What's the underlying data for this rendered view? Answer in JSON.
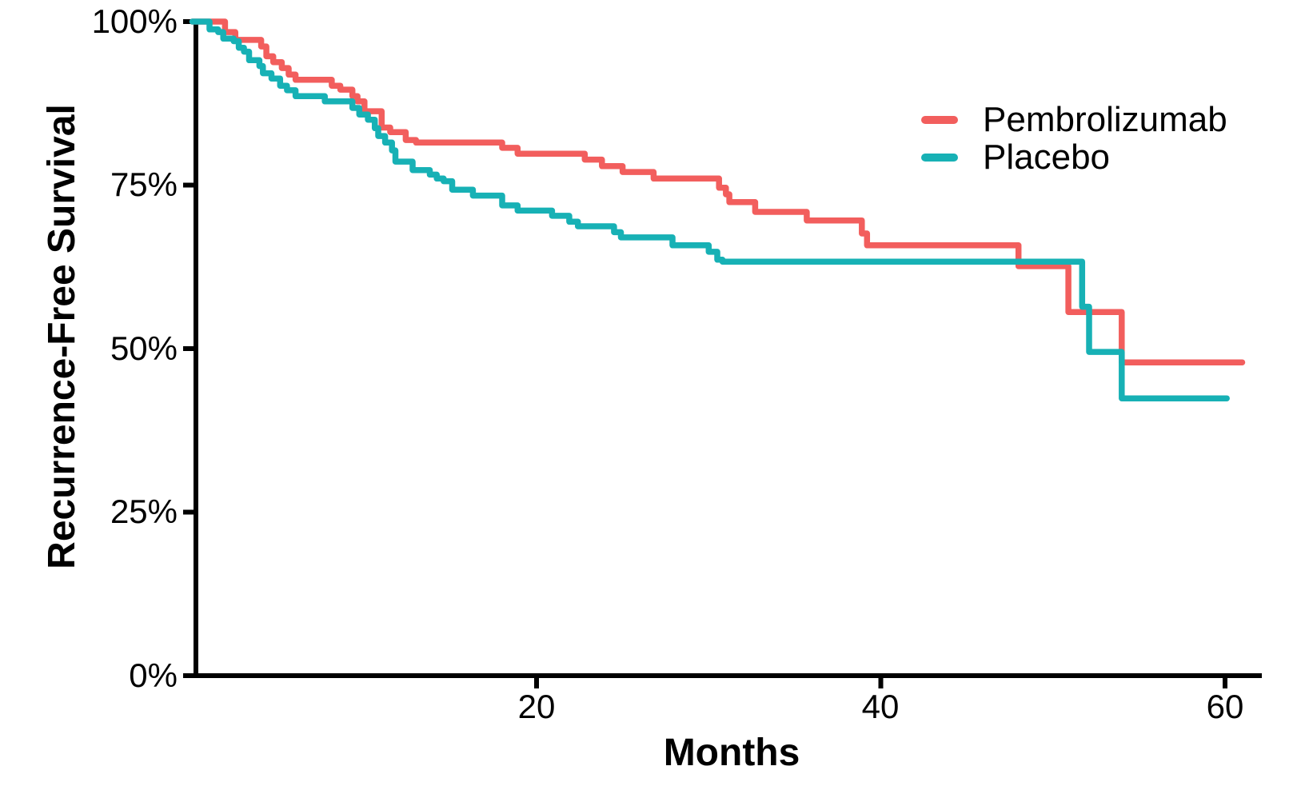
{
  "chart_data": {
    "type": "line",
    "subtype": "kaplan-meier-step",
    "title": "",
    "xlabel": "Months",
    "ylabel": "Recurrence-Free Survival",
    "xlim": [
      0,
      62
    ],
    "ylim": [
      0,
      100
    ],
    "x_ticks": [
      20,
      40,
      60
    ],
    "x_tick_labels": [
      "20",
      "40",
      "60"
    ],
    "y_ticks": [
      0,
      25,
      50,
      75,
      100
    ],
    "y_tick_labels": [
      "0%",
      "25%",
      "50%",
      "75%",
      "100%"
    ],
    "grid": false,
    "legend_position": "top-right-inside",
    "axis_color": "#000000",
    "background_color": "#ffffff",
    "series": [
      {
        "name": "Pembrolizumab",
        "color": "#F25E5D",
        "points_unit": [
          "month",
          "percent_survival"
        ],
        "points": [
          [
            0,
            100
          ],
          [
            1.9,
            98.4
          ],
          [
            2.5,
            97.2
          ],
          [
            4.0,
            96.2
          ],
          [
            4.3,
            94.7
          ],
          [
            4.7,
            93.8
          ],
          [
            5.2,
            92.9
          ],
          [
            5.6,
            91.9
          ],
          [
            6.0,
            91.1
          ],
          [
            8.1,
            90.2
          ],
          [
            8.6,
            89.6
          ],
          [
            9.3,
            88.6
          ],
          [
            9.6,
            87.8
          ],
          [
            10.0,
            86.3
          ],
          [
            11.0,
            83.8
          ],
          [
            11.5,
            83.1
          ],
          [
            12.4,
            81.9
          ],
          [
            13.0,
            81.5
          ],
          [
            18.0,
            80.7
          ],
          [
            18.9,
            79.8
          ],
          [
            22.8,
            78.9
          ],
          [
            23.8,
            77.9
          ],
          [
            25.0,
            77.0
          ],
          [
            26.8,
            76.0
          ],
          [
            30.6,
            74.6
          ],
          [
            31.0,
            73.6
          ],
          [
            31.2,
            72.4
          ],
          [
            32.7,
            70.9
          ],
          [
            35.7,
            69.6
          ],
          [
            38.9,
            67.6
          ],
          [
            39.2,
            65.8
          ],
          [
            48.0,
            62.6
          ],
          [
            50.9,
            55.6
          ],
          [
            54.0,
            47.9
          ],
          [
            61.0,
            47.9
          ]
        ]
      },
      {
        "name": "Placebo",
        "color": "#17B1B5",
        "points_unit": [
          "month",
          "percent_survival"
        ],
        "points": [
          [
            0,
            100
          ],
          [
            1.0,
            98.8
          ],
          [
            1.5,
            98.4
          ],
          [
            1.8,
            97.4
          ],
          [
            2.4,
            97.0
          ],
          [
            2.7,
            96.0
          ],
          [
            3.0,
            95.4
          ],
          [
            3.3,
            94.1
          ],
          [
            3.9,
            93.2
          ],
          [
            4.1,
            92.1
          ],
          [
            4.6,
            91.3
          ],
          [
            5.1,
            90.2
          ],
          [
            5.5,
            89.5
          ],
          [
            6.0,
            88.6
          ],
          [
            7.7,
            87.8
          ],
          [
            9.3,
            86.8
          ],
          [
            9.7,
            85.8
          ],
          [
            10.2,
            85.0
          ],
          [
            10.6,
            83.7
          ],
          [
            10.8,
            82.5
          ],
          [
            11.2,
            81.5
          ],
          [
            11.6,
            80.3
          ],
          [
            11.8,
            78.6
          ],
          [
            12.8,
            77.3
          ],
          [
            13.8,
            76.6
          ],
          [
            14.2,
            76.0
          ],
          [
            14.6,
            75.6
          ],
          [
            15.1,
            74.3
          ],
          [
            16.3,
            73.4
          ],
          [
            18.0,
            71.9
          ],
          [
            18.9,
            71.1
          ],
          [
            20.9,
            70.3
          ],
          [
            21.9,
            69.4
          ],
          [
            22.4,
            68.7
          ],
          [
            24.5,
            67.8
          ],
          [
            24.9,
            67.0
          ],
          [
            27.9,
            65.8
          ],
          [
            30.0,
            64.8
          ],
          [
            30.5,
            63.6
          ],
          [
            30.8,
            63.3
          ],
          [
            51.7,
            56.4
          ],
          [
            52.1,
            49.5
          ],
          [
            54.0,
            42.4
          ],
          [
            60.1,
            42.4
          ]
        ]
      }
    ]
  }
}
